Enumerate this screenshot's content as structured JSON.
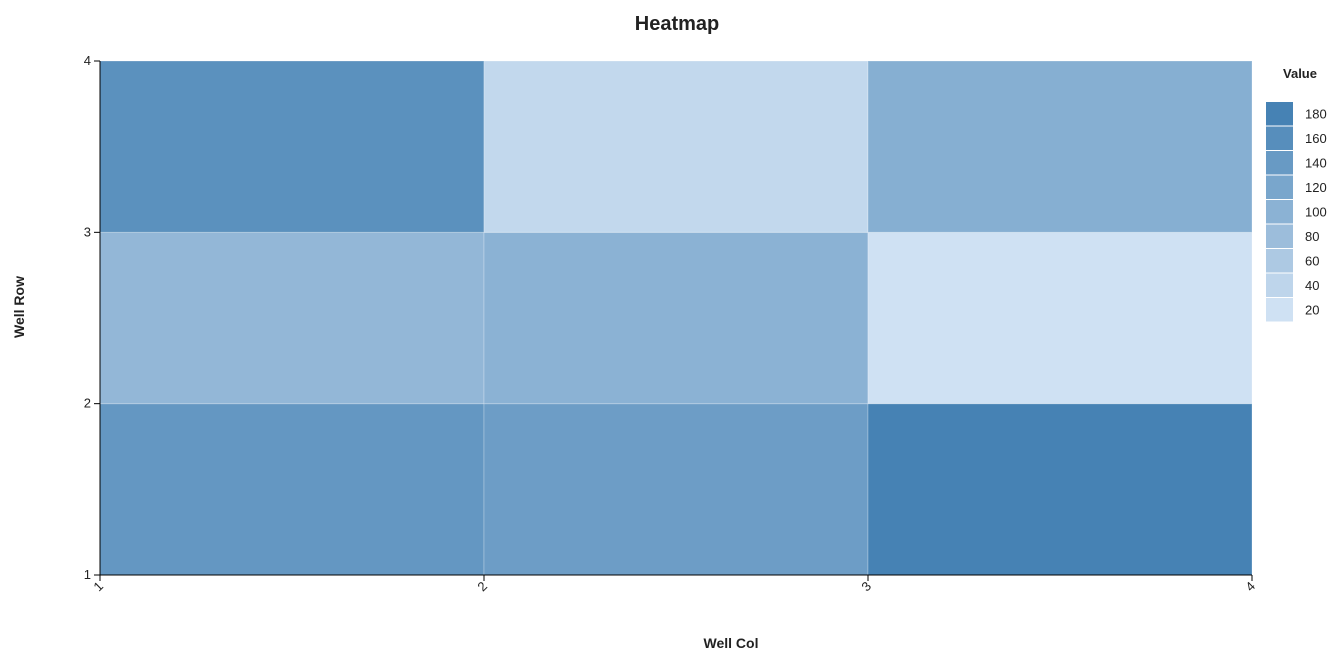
{
  "chart_data": {
    "type": "heatmap",
    "title": "Heatmap",
    "xlabel": "Well Col",
    "ylabel": "Well Row",
    "x_ticks": [
      "1",
      "2",
      "3",
      "4"
    ],
    "y_ticks": [
      "1",
      "2",
      "3",
      "4"
    ],
    "xlim": [
      1,
      4
    ],
    "ylim": [
      1,
      4
    ],
    "cells": [
      {
        "col": 1,
        "row": 1,
        "value": 145
      },
      {
        "col": 2,
        "row": 1,
        "value": 135
      },
      {
        "col": 3,
        "row": 1,
        "value": 180
      },
      {
        "col": 1,
        "row": 2,
        "value": 90
      },
      {
        "col": 2,
        "row": 2,
        "value": 100
      },
      {
        "col": 3,
        "row": 2,
        "value": 20
      },
      {
        "col": 1,
        "row": 3,
        "value": 155
      },
      {
        "col": 2,
        "row": 3,
        "value": 35
      },
      {
        "col": 3,
        "row": 3,
        "value": 105
      }
    ],
    "legend": {
      "title": "Value",
      "position": "right",
      "entries": [
        "180",
        "160",
        "140",
        "120",
        "100",
        "80",
        "60",
        "40",
        "20"
      ]
    },
    "colors": {
      "min": "#cfe1f3",
      "max": "#4682b4"
    },
    "grid": false
  }
}
